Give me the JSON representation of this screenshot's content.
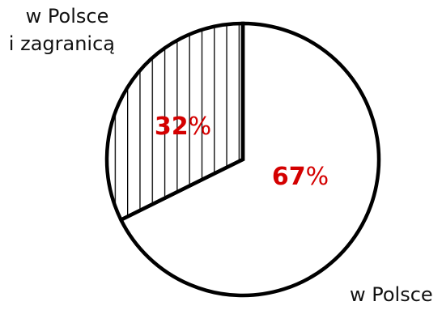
{
  "chart_data": {
    "type": "pie",
    "slices": [
      {
        "label": "w Polsce",
        "value": 67,
        "value_label": "67%",
        "fill": "none"
      },
      {
        "label": "w Polsce i zagranicą",
        "label_lines": [
          "w Polsce",
          "i zagranicą"
        ],
        "value": 32,
        "value_label": "32%",
        "fill": "vertical-hatch"
      }
    ],
    "value_color": "#d40000",
    "outline_color": "#000000",
    "background_color": "#ffffff"
  }
}
